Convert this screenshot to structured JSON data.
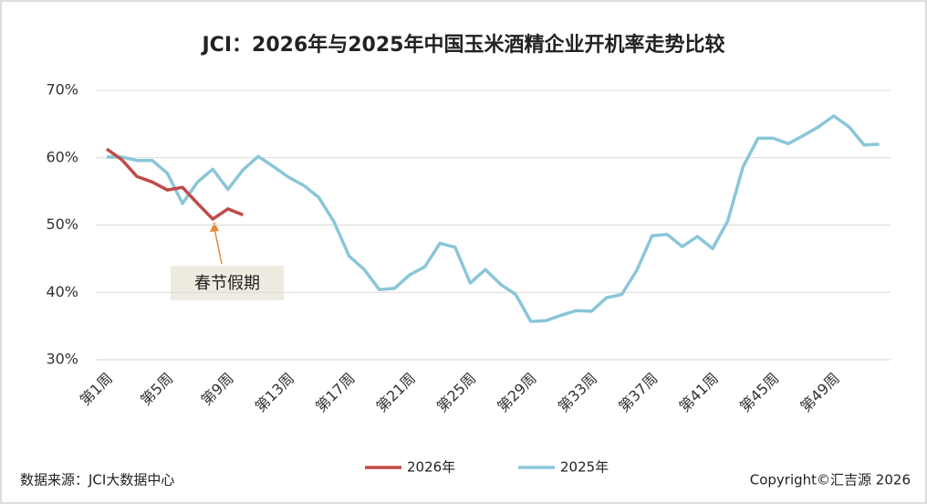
{
  "chart_data": {
    "type": "line",
    "title": "JCI：2026年与2025年中国玉米酒精企业开机率走势比较",
    "categories": [
      "第1周",
      null,
      null,
      null,
      "第5周",
      null,
      null,
      null,
      "第9周",
      null,
      null,
      null,
      "第13周",
      null,
      null,
      null,
      "第17周",
      null,
      null,
      null,
      "第21周",
      null,
      null,
      null,
      "第25周",
      null,
      null,
      null,
      "第29周",
      null,
      null,
      null,
      "第33周",
      null,
      null,
      null,
      "第37周",
      null,
      null,
      null,
      "第41周",
      null,
      null,
      null,
      "第45周",
      null,
      null,
      null,
      "第49周",
      null,
      null,
      null
    ],
    "series": [
      {
        "name": "2026年",
        "color": "#bf4b48",
        "values": [
          61.3,
          59.7,
          57.2,
          56.4,
          55.2,
          55.6,
          53.2,
          50.9,
          52.4,
          51.5,
          null,
          null,
          null,
          null,
          null,
          null,
          null,
          null,
          null,
          null,
          null,
          null,
          null,
          null,
          null,
          null,
          null,
          null,
          null,
          null,
          null,
          null,
          null,
          null,
          null,
          null,
          null,
          null,
          null,
          null,
          null,
          null,
          null,
          null,
          null,
          null,
          null,
          null,
          null,
          null,
          null,
          null
        ]
      },
      {
        "name": "2025年",
        "color": "#8ac6d8",
        "values": [
          60.1,
          60.1,
          59.6,
          59.6,
          57.7,
          53.2,
          56.4,
          58.3,
          55.3,
          58.2,
          60.2,
          58.7,
          57.1,
          55.9,
          54.1,
          50.5,
          45.4,
          43.4,
          40.4,
          40.6,
          42.6,
          43.8,
          47.3,
          46.7,
          41.4,
          43.4,
          41.2,
          39.7,
          35.7,
          35.8,
          36.6,
          37.3,
          37.2,
          39.2,
          39.7,
          43.3,
          48.4,
          48.6,
          46.8,
          48.3,
          46.5,
          50.6,
          58.6,
          62.9,
          62.9,
          62.1,
          63.3,
          64.6,
          66.2,
          64.6,
          61.9,
          62.0
        ]
      }
    ],
    "ylim": [
      30,
      70
    ],
    "yticks": [
      {
        "value": 30,
        "label": "30%"
      },
      {
        "value": 40,
        "label": "40%"
      },
      {
        "value": 50,
        "label": "50%"
      },
      {
        "value": 60,
        "label": "60%"
      },
      {
        "value": 70,
        "label": "70%"
      }
    ],
    "grid": true,
    "annotation": "春节假期",
    "source": "数据来源：JCI大数据中心",
    "copyright": "Copyright©汇吉源 2026"
  }
}
